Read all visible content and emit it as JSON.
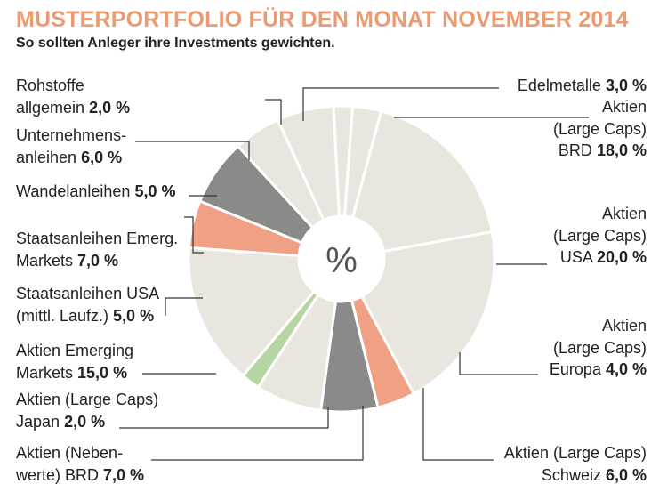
{
  "title": "MUSTERPORTFOLIO FÜR DEN MONAT NOVEMBER 2014",
  "subtitle": "So sollten Anleger ihre Investments gewichten.",
  "center_label": "%",
  "colors": {
    "title": "#ee9a70",
    "beige": "#e9e6df",
    "grey": "#8a8a88",
    "salmon": "#f0a085",
    "green": "#b5d6a3"
  },
  "chart_data": {
    "type": "pie",
    "title": "MUSTERPORTFOLIO FÜR DEN MONAT NOVEMBER 2014",
    "subtitle": "So sollten Anleger ihre Investments gewichten.",
    "unit": "%",
    "slices": [
      {
        "label_lines": [
          "Aktien",
          "(Large Caps)",
          "BRD"
        ],
        "pct_text": "18,0 %",
        "value": 18.0,
        "color": "beige"
      },
      {
        "label_lines": [
          "Aktien",
          "(Large Caps)",
          "USA"
        ],
        "pct_text": "20,0 %",
        "value": 20.0,
        "color": "beige"
      },
      {
        "label_lines": [
          "Aktien",
          "(Large Caps)",
          "Europa"
        ],
        "pct_text": "4,0 %",
        "value": 4.0,
        "color": "salmon"
      },
      {
        "label_lines": [
          "Aktien (Large Caps)",
          "Schweiz"
        ],
        "pct_text": "6,0 %",
        "value": 6.0,
        "color": "grey"
      },
      {
        "label_lines": [
          "Aktien (Neben-",
          "werte) BRD"
        ],
        "pct_text": "7,0 %",
        "value": 7.0,
        "color": "beige"
      },
      {
        "label_lines": [
          "Aktien (Large Caps)",
          "Japan"
        ],
        "pct_text": "2,0 %",
        "value": 2.0,
        "color": "green"
      },
      {
        "label_lines": [
          "Aktien Emerging",
          "Markets"
        ],
        "pct_text": "15,0 %",
        "value": 15.0,
        "color": "beige"
      },
      {
        "label_lines": [
          "Staatsanleihen USA",
          "(mittl. Laufz.)"
        ],
        "pct_text": "5,0 %",
        "value": 5.0,
        "color": "salmon"
      },
      {
        "label_lines": [
          "Staatsanleihen Emerg.",
          "Markets"
        ],
        "pct_text": "7,0 %",
        "value": 7.0,
        "color": "grey"
      },
      {
        "label_lines": [
          "Wandelanleihen"
        ],
        "pct_text": "5,0 %",
        "value": 5.0,
        "color": "beige"
      },
      {
        "label_lines": [
          "Unternehmens-",
          "anleihen"
        ],
        "pct_text": "6,0 %",
        "value": 6.0,
        "color": "beige"
      },
      {
        "label_lines": [
          "Rohstoffe",
          "allgemein"
        ],
        "pct_text": "2,0 %",
        "value": 2.0,
        "color": "beige"
      },
      {
        "label_lines": [
          "Edelmetalle"
        ],
        "pct_text": "3,0 %",
        "value": 3.0,
        "color": "beige"
      }
    ]
  }
}
